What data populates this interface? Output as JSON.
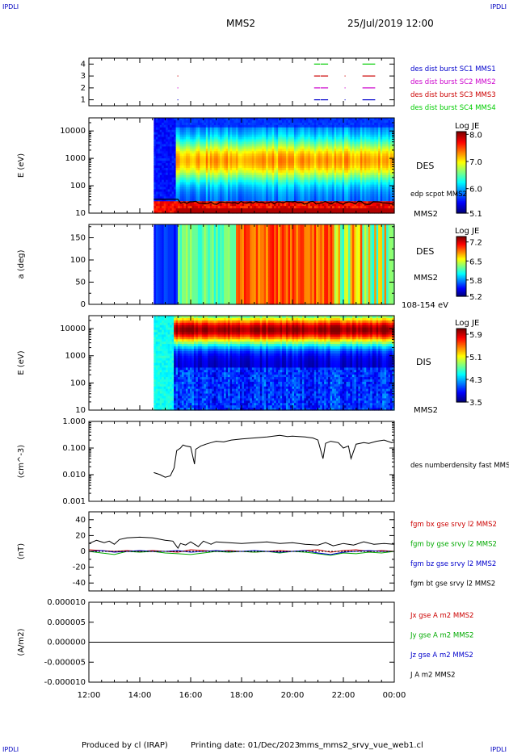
{
  "header": {
    "corner_label": "IPDLI",
    "spacecraft": "MMS2",
    "datetime": "25/Jul/2019 12:00"
  },
  "footer": {
    "produced_by": "Produced by cl (IRAP)",
    "printing_date": "Printing date: 01/Dec/2023",
    "filename": "mms_mms2_srvy_vue_web1.cl"
  },
  "chart_data": [
    {
      "panel": "burst",
      "type": "line",
      "y_ticks": [
        "1",
        "2",
        "3",
        "4"
      ],
      "legend": [
        {
          "label": "des dist burst SC1 MMS1",
          "color": "#0000cc"
        },
        {
          "label": "des dist burst SC2 MMS2",
          "color": "#cc00cc"
        },
        {
          "label": "des dist burst SC3 MMS3",
          "color": "#cc0000"
        },
        {
          "label": "des dist burst SC4 MMS4",
          "color": "#00cc00"
        }
      ],
      "segments_hours": [
        [
          [
            15.48,
            15.5
          ],
          [
            20.85,
            21.08
          ],
          [
            21.1,
            21.4
          ],
          [
            22.05,
            22.07
          ],
          [
            22.75,
            23.25
          ]
        ],
        [
          [
            15.48,
            15.5
          ],
          [
            20.85,
            21.08
          ],
          [
            21.1,
            21.4
          ],
          [
            22.05,
            22.07
          ],
          [
            22.75,
            23.25
          ]
        ],
        [
          [
            15.48,
            15.5
          ],
          [
            20.85,
            21.08
          ],
          [
            21.1,
            21.4
          ],
          [
            22.05,
            22.07
          ],
          [
            22.75,
            23.25
          ]
        ],
        [
          [
            20.85,
            21.08
          ],
          [
            21.1,
            21.4
          ],
          [
            22.75,
            23.25
          ]
        ]
      ]
    },
    {
      "panel": "des_energy",
      "type": "heatmap",
      "ylabel": "E (eV)",
      "y_ticks": [
        "10",
        "100",
        "1000",
        "10000"
      ],
      "ylim": [
        10,
        30000
      ],
      "yscale": "log",
      "label": "DES",
      "spacecraft_label": "MMS2",
      "overlay_label": "edp scpot MMS2",
      "colorbar": {
        "title": "Log JE",
        "ticks": [
          "8.0",
          "7.0",
          "6.0",
          "5.1"
        ],
        "range": [
          5.1,
          8.1
        ]
      },
      "data_start_hour": 14.55
    },
    {
      "panel": "des_pitch",
      "type": "heatmap",
      "ylabel": "a (deg)",
      "y_ticks": [
        "0",
        "50",
        "100",
        "150"
      ],
      "ylim": [
        0,
        180
      ],
      "label": "DES",
      "spacecraft_label": "MMS2",
      "energy_band": "108-154 eV",
      "colorbar": {
        "title": "Log JE",
        "ticks": [
          "7.2",
          "6.5",
          "5.8",
          "5.2"
        ],
        "range": [
          5.2,
          7.4
        ]
      },
      "data_start_hour": 14.55
    },
    {
      "panel": "dis_energy",
      "type": "heatmap",
      "ylabel": "E (eV)",
      "y_ticks": [
        "10",
        "100",
        "1000",
        "10000"
      ],
      "ylim": [
        10,
        30000
      ],
      "yscale": "log",
      "label": "DIS",
      "spacecraft_label": "MMS2",
      "colorbar": {
        "title": "Log JE",
        "ticks": [
          "5.9",
          "5.1",
          "4.3",
          "3.5"
        ],
        "range": [
          3.5,
          6.1
        ]
      },
      "data_start_hour": 14.55
    },
    {
      "panel": "density",
      "type": "line",
      "ylabel": "(cm^-3)",
      "y_ticks": [
        "0.001",
        "0.010",
        "0.100",
        "1.000"
      ],
      "ylim": [
        0.001,
        1.0
      ],
      "yscale": "log",
      "legend": [
        {
          "label": "des numberdensity fast MMS2",
          "color": "#000000"
        }
      ],
      "x": [
        14.55,
        14.8,
        15.0,
        15.2,
        15.35,
        15.45,
        15.6,
        15.7,
        15.8,
        16.0,
        16.15,
        16.2,
        16.4,
        16.6,
        16.8,
        17.0,
        17.3,
        17.6,
        18.0,
        18.5,
        19.0,
        19.5,
        19.8,
        20.0,
        20.5,
        20.8,
        21.0,
        21.2,
        21.3,
        21.5,
        21.8,
        22.0,
        22.2,
        22.3,
        22.5,
        22.8,
        23.0,
        23.3,
        23.6,
        23.9,
        24.0
      ],
      "y": [
        0.012,
        0.01,
        0.008,
        0.009,
        0.018,
        0.08,
        0.1,
        0.13,
        0.12,
        0.11,
        0.025,
        0.09,
        0.12,
        0.14,
        0.16,
        0.18,
        0.17,
        0.2,
        0.22,
        0.24,
        0.26,
        0.3,
        0.27,
        0.28,
        0.26,
        0.24,
        0.2,
        0.04,
        0.15,
        0.18,
        0.16,
        0.1,
        0.12,
        0.04,
        0.14,
        0.16,
        0.15,
        0.18,
        0.2,
        0.16,
        0.17
      ]
    },
    {
      "panel": "magnetic_field",
      "type": "line",
      "ylabel": "(nT)",
      "y_ticks": [
        "-40",
        "-20",
        "0",
        "20",
        "40"
      ],
      "ylim": [
        -50,
        50
      ],
      "legend": [
        {
          "label": "fgm bx gse srvy l2 MMS2",
          "color": "#cc0000"
        },
        {
          "label": "fgm by gse srvy l2 MMS2",
          "color": "#00aa00"
        },
        {
          "label": "fgm bz gse srvy l2 MMS2",
          "color": "#0000cc"
        },
        {
          "label": "fgm bt gse srvy l2 MMS2",
          "color": "#000000"
        }
      ],
      "series": [
        {
          "x": [
            12.0,
            12.5,
            13.0,
            13.5,
            14.0,
            14.5,
            15.0,
            15.5,
            16.0,
            16.5,
            17.0,
            17.5,
            18.0,
            18.5,
            19.0,
            19.5,
            20.0,
            20.5,
            21.0,
            21.5,
            22.0,
            22.5,
            23.0,
            23.5,
            24.0
          ],
          "y": [
            2,
            1,
            0,
            1,
            0,
            1,
            0,
            -1,
            2,
            1,
            0,
            1,
            0,
            -1,
            0,
            1,
            0,
            1,
            2,
            -1,
            1,
            2,
            0,
            1,
            0
          ]
        },
        {
          "x": [
            12.0,
            12.5,
            13.0,
            13.5,
            14.0,
            14.5,
            15.0,
            15.5,
            16.0,
            16.5,
            17.0,
            17.5,
            18.0,
            18.5,
            19.0,
            19.5,
            20.0,
            20.5,
            21.0,
            21.5,
            22.0,
            22.5,
            23.0,
            23.5,
            24.0
          ],
          "y": [
            0,
            -2,
            -4,
            0,
            -1,
            0,
            -2,
            -3,
            -4,
            -2,
            0,
            -1,
            0,
            -1,
            0,
            -2,
            0,
            -1,
            -3,
            -5,
            -2,
            -3,
            -1,
            -2,
            0
          ]
        },
        {
          "x": [
            12.0,
            12.5,
            13.0,
            13.5,
            14.0,
            14.5,
            15.0,
            15.5,
            16.0,
            16.5,
            17.0,
            17.5,
            18.0,
            18.5,
            19.0,
            19.5,
            20.0,
            20.5,
            21.0,
            21.5,
            22.0,
            22.5,
            23.0,
            23.5,
            24.0
          ],
          "y": [
            0,
            1,
            -1,
            0,
            1,
            0,
            0,
            1,
            -1,
            0,
            1,
            0,
            0,
            1,
            0,
            -1,
            0,
            1,
            -2,
            -4,
            -1,
            0,
            1,
            0,
            0
          ]
        },
        {
          "x": [
            12.0,
            12.3,
            12.6,
            12.8,
            13.0,
            13.2,
            13.5,
            14.0,
            14.5,
            15.0,
            15.3,
            15.5,
            15.6,
            15.8,
            16.0,
            16.3,
            16.5,
            16.8,
            17.0,
            17.5,
            18.0,
            18.5,
            19.0,
            19.5,
            20.0,
            20.5,
            21.0,
            21.3,
            21.6,
            22.0,
            22.4,
            22.8,
            23.2,
            23.6,
            24.0
          ],
          "y": [
            10,
            14,
            11,
            13,
            9,
            15,
            17,
            18,
            17,
            14,
            13,
            4,
            10,
            8,
            12,
            6,
            13,
            9,
            12,
            11,
            10,
            11,
            12,
            10,
            11,
            9,
            8,
            11,
            7,
            10,
            8,
            12,
            9,
            10,
            9
          ]
        }
      ]
    },
    {
      "panel": "current_density",
      "type": "line",
      "ylabel": "(A/m2)",
      "y_ticks": [
        "-0.000010",
        "-0.000005",
        "0.000000",
        "0.000005",
        "0.000010"
      ],
      "ylim": [
        -1e-05,
        1e-05
      ],
      "legend": [
        {
          "label": "Jx gse A m2 MMS2",
          "color": "#cc0000"
        },
        {
          "label": "Jy gse A m2 MMS2",
          "color": "#00aa00"
        },
        {
          "label": "Jz gse A m2 MMS2",
          "color": "#0000cc"
        },
        {
          "label": "J A m2 MMS2",
          "color": "#000000"
        }
      ],
      "x": [
        12.0,
        24.0
      ],
      "y": [
        0.0,
        0.0
      ]
    }
  ],
  "x_axis": {
    "ticks": [
      "12:00",
      "14:00",
      "16:00",
      "18:00",
      "20:00",
      "22:00",
      "00:00"
    ],
    "range_hours": [
      12,
      24
    ]
  }
}
